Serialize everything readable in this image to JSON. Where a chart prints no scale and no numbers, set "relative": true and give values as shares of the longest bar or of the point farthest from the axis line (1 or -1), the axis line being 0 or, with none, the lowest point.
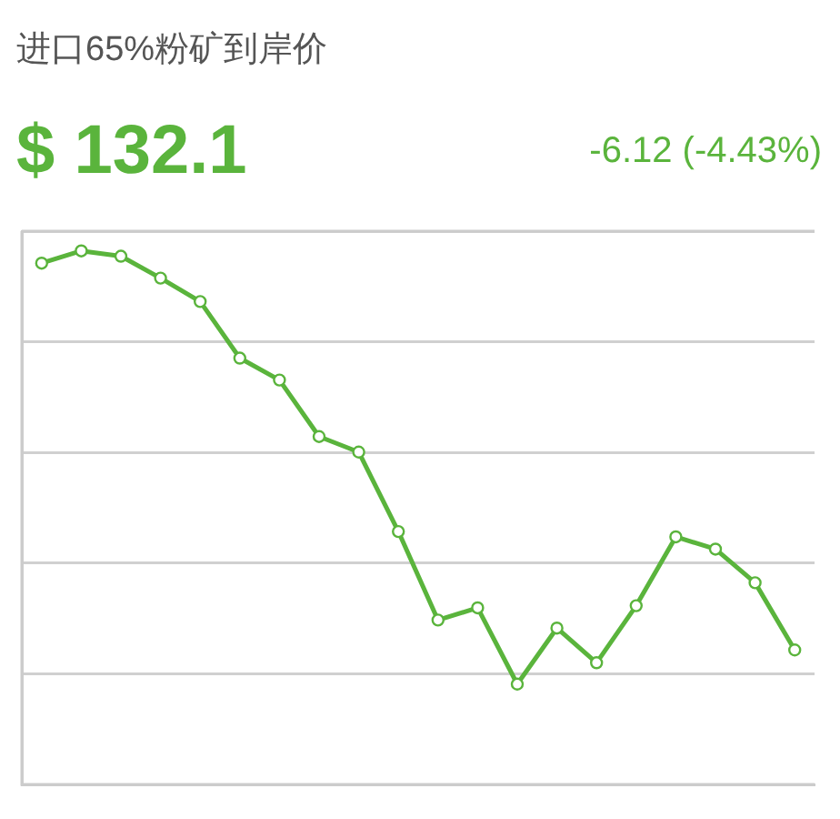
{
  "chart_data": {
    "type": "line",
    "title": "进口65%粉矿到岸价",
    "subtitle": "$ 132.1",
    "annotations": [
      "-6.12 (-4.43%)"
    ],
    "relative": true,
    "categories": [
      null,
      null,
      null,
      null,
      null,
      null,
      null,
      null,
      null,
      null,
      null,
      null,
      null,
      null,
      null,
      null,
      null,
      null,
      null,
      null
    ],
    "series": [
      {
        "color": "#5ab43c",
        "values": [
          0.977,
          1,
          0.99,
          0.949,
          0.905,
          0.799,
          0.758,
          0.652,
          0.623,
          0.474,
          0.308,
          0.331,
          0.188,
          0.293,
          0.228,
          0.335,
          0.464,
          0.441,
          0.378,
          0.252
        ]
      }
    ],
    "grid": "y",
    "marker": "circle",
    "line_style": "solid"
  }
}
